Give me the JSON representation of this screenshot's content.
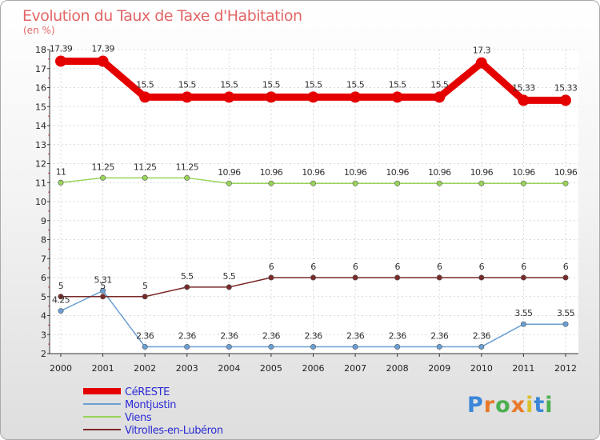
{
  "chart_data": {
    "type": "line",
    "title": "Evolution du Taux de Taxe d'Habitation",
    "subtitle": "(en %)",
    "xlabel": "",
    "ylabel": "",
    "categories": [
      "2000",
      "2001",
      "2002",
      "2003",
      "2004",
      "2005",
      "2006",
      "2007",
      "2008",
      "2009",
      "2010",
      "2011",
      "2012"
    ],
    "ylim": [
      2,
      18
    ],
    "yticks": [
      "2",
      "3",
      "4",
      "5",
      "6",
      "7",
      "8",
      "9",
      "10",
      "11",
      "12",
      "13",
      "14",
      "15",
      "16",
      "17",
      "18"
    ],
    "grid": true,
    "legend_position": "bottom-left",
    "series": [
      {
        "name": "CéRESTE",
        "color": "#e50000",
        "values": [
          17.39,
          17.39,
          15.5,
          15.5,
          15.5,
          15.5,
          15.5,
          15.5,
          15.5,
          15.5,
          17.3,
          15.33,
          15.33
        ],
        "labels": [
          "17.39",
          "17.39",
          "15.5",
          "15.5",
          "15.5",
          "15.5",
          "15.5",
          "15.5",
          "15.5",
          "15.5",
          "17.3",
          "15.33",
          "15.33"
        ]
      },
      {
        "name": "Montjustin",
        "color": "#6a9fd4",
        "values": [
          4.25,
          5.31,
          2.36,
          2.36,
          2.36,
          2.36,
          2.36,
          2.36,
          2.36,
          2.36,
          2.36,
          3.55,
          3.55
        ],
        "labels": [
          "4.25",
          "5.31",
          "2.36",
          "2.36",
          "2.36",
          "2.36",
          "2.36",
          "2.36",
          "2.36",
          "2.36",
          "2.36",
          "3.55",
          "3.55"
        ]
      },
      {
        "name": "Viens",
        "color": "#99d45a",
        "values": [
          11,
          11.25,
          11.25,
          11.25,
          10.96,
          10.96,
          10.96,
          10.96,
          10.96,
          10.96,
          10.96,
          10.96,
          10.96
        ],
        "labels": [
          "11",
          "11.25",
          "11.25",
          "11.25",
          "10.96",
          "10.96",
          "10.96",
          "10.96",
          "10.96",
          "10.96",
          "10.96",
          "10.96",
          "10.96"
        ]
      },
      {
        "name": "Vitrolles-en-Lubéron",
        "color": "#7a2a2a",
        "values": [
          5,
          5,
          5,
          5.5,
          5.5,
          6,
          6,
          6,
          6,
          6,
          6,
          6,
          6
        ],
        "labels": [
          "5",
          "5",
          "5",
          "5.5",
          "5.5",
          "6",
          "6",
          "6",
          "6",
          "6",
          "6",
          "6",
          "6"
        ]
      }
    ]
  },
  "logo": {
    "letters": [
      "P",
      "r",
      "o",
      "x",
      "i",
      "t",
      "i"
    ],
    "colors": [
      "#3a86d8",
      "#e8792a",
      "#4caf50",
      "#e8792a",
      "#d8c12a",
      "#3a86d8",
      "#4caf50"
    ]
  }
}
